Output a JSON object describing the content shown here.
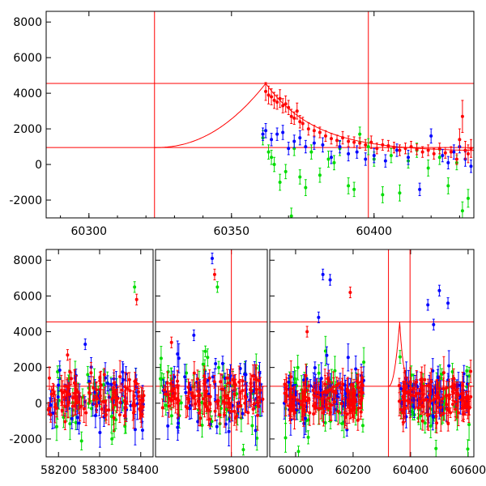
{
  "chart_data": [
    {
      "type": "scatter",
      "panel": "top",
      "title": "",
      "xlabel": "",
      "ylabel": "",
      "xlim": [
        60285,
        60435
      ],
      "ylim": [
        -3000,
        8600
      ],
      "xticks": [
        60300,
        60350,
        60400
      ],
      "yticks": [
        -2000,
        0,
        2000,
        4000,
        6000,
        8000
      ],
      "grid": false,
      "legend": "none",
      "reference_lines": {
        "vertical_x": [
          60323,
          60398
        ],
        "horizontal_y": [
          4550,
          950
        ]
      },
      "model_curve": {
        "start": [
          60323,
          950
        ],
        "peak": [
          60362,
          4550
        ],
        "end": [
          60435,
          730
        ]
      },
      "series": [
        {
          "color": "#ff0000",
          "x": [
            60362,
            60363,
            60364,
            60365,
            60366,
            60367,
            60368,
            60369,
            60370,
            60371,
            60372,
            60373,
            60374,
            60375,
            60377,
            60379,
            60381,
            60383,
            60385,
            60387,
            60389,
            60391,
            60393,
            60395,
            60397,
            60399,
            60401,
            60403,
            60405,
            60407,
            60409,
            60411,
            60413,
            60415,
            60417,
            60419,
            60421,
            60423,
            60425,
            60427,
            60429,
            60430,
            60431,
            60432,
            60433,
            60434
          ],
          "y": [
            4100,
            3900,
            3800,
            3600,
            3500,
            3700,
            3300,
            3400,
            3200,
            2700,
            2600,
            3000,
            2400,
            2300,
            2000,
            1900,
            1800,
            1600,
            1450,
            1350,
            1500,
            1300,
            1250,
            1200,
            1100,
            1250,
            900,
            1100,
            1050,
            950,
            800,
            900,
            1000,
            850,
            700,
            800,
            600,
            900,
            650,
            700,
            300,
            1400,
            2700,
            800,
            600,
            900
          ],
          "err": [
            500,
            500,
            450,
            450,
            400,
            500,
            400,
            450,
            400,
            400,
            350,
            450,
            350,
            350,
            350,
            300,
            300,
            300,
            300,
            300,
            350,
            300,
            300,
            300,
            300,
            350,
            300,
            300,
            300,
            300,
            300,
            300,
            300,
            300,
            300,
            300,
            300,
            300,
            300,
            300,
            300,
            600,
            900,
            500,
            500,
            500
          ]
        },
        {
          "color": "#0000ff",
          "x": [
            60361,
            60362,
            60364,
            60366,
            60368,
            60370,
            60372,
            60374,
            60376,
            60379,
            60382,
            60385,
            60388,
            60391,
            60394,
            60397,
            60400,
            60404,
            60408,
            60412,
            60416,
            60420,
            60424,
            60426,
            60428,
            60430,
            60432,
            60434
          ],
          "y": [
            1700,
            1900,
            1400,
            1700,
            1800,
            900,
            1300,
            1500,
            1000,
            1200,
            1100,
            400,
            1000,
            600,
            700,
            300,
            500,
            200,
            800,
            400,
            -1400,
            1600,
            500,
            100,
            700,
            1000,
            300,
            -100
          ],
          "err": [
            350,
            400,
            350,
            350,
            400,
            350,
            350,
            400,
            350,
            350,
            400,
            350,
            350,
            400,
            350,
            350,
            400,
            350,
            350,
            400,
            350,
            400,
            350,
            350,
            400,
            350,
            400,
            350
          ]
        },
        {
          "color": "#00dd00",
          "x": [
            60361,
            60363,
            60364,
            60365,
            60367,
            60369,
            60371,
            60372,
            60374,
            60376,
            60378,
            60381,
            60384,
            60386,
            60388,
            60391,
            60393,
            60395,
            60398,
            60400,
            60403,
            60406,
            60409,
            60412,
            60415,
            60419,
            60423,
            60426,
            60429,
            60431,
            60433
          ],
          "y": [
            1500,
            700,
            400,
            0,
            -1000,
            -400,
            -2900,
            900,
            -700,
            -1300,
            700,
            -600,
            300,
            100,
            900,
            -1200,
            -1400,
            1700,
            1000,
            300,
            -1700,
            500,
            -1600,
            200,
            800,
            -200,
            400,
            -1200,
            100,
            -2600,
            -1900
          ],
          "err": [
            400,
            400,
            400,
            400,
            450,
            400,
            450,
            400,
            400,
            450,
            400,
            400,
            450,
            400,
            400,
            450,
            400,
            400,
            450,
            400,
            450,
            400,
            450,
            400,
            400,
            450,
            400,
            450,
            400,
            500,
            500
          ]
        }
      ]
    },
    {
      "type": "scatter",
      "panel": "bottom",
      "title": "",
      "xlabel": "",
      "ylabel": "",
      "ylim": [
        -3000,
        8600
      ],
      "yticks": [
        -2000,
        0,
        2000,
        4000,
        6000,
        8000
      ],
      "grid": false,
      "legend": "none",
      "segments": [
        {
          "xlim": [
            58170,
            58430
          ],
          "xticks": [
            58200,
            58300,
            58400
          ],
          "vertical_x": [],
          "outliers": [
            {
              "x": 58385,
              "y": 6500,
              "color": "#00dd00"
            },
            {
              "x": 58390,
              "y": 5800,
              "color": "#ff0000"
            },
            {
              "x": 58222,
              "y": 2700,
              "color": "#ff0000"
            },
            {
              "x": 58265,
              "y": 3300,
              "color": "#0000ff"
            },
            {
              "x": 58330,
              "y": -2000,
              "color": "#00dd00"
            }
          ]
        },
        {
          "xlim": [
            59610,
            59890
          ],
          "xticks": [
            59800
          ],
          "vertical_x": [
            59800
          ],
          "outliers": [
            {
              "x": 59752,
              "y": 8100,
              "color": "#0000ff"
            },
            {
              "x": 59765,
              "y": 6500,
              "color": "#00dd00"
            },
            {
              "x": 59758,
              "y": 7200,
              "color": "#ff0000"
            },
            {
              "x": 59706,
              "y": 3800,
              "color": "#0000ff"
            },
            {
              "x": 59735,
              "y": 2900,
              "color": "#00dd00"
            },
            {
              "x": 59650,
              "y": 3400,
              "color": "#ff0000"
            },
            {
              "x": 59830,
              "y": -2600,
              "color": "#00dd00"
            }
          ]
        },
        {
          "xlim": [
            59910,
            60620
          ],
          "xticks": [
            60000,
            60200,
            60400,
            60600
          ],
          "vertical_x": [
            60323,
            60398
          ],
          "outliers": [
            {
              "x": 60095,
              "y": 7200,
              "color": "#0000ff"
            },
            {
              "x": 60120,
              "y": 6900,
              "color": "#0000ff"
            },
            {
              "x": 60190,
              "y": 6200,
              "color": "#ff0000"
            },
            {
              "x": 60080,
              "y": 4800,
              "color": "#0000ff"
            },
            {
              "x": 60460,
              "y": 5500,
              "color": "#0000ff"
            },
            {
              "x": 60500,
              "y": 6300,
              "color": "#0000ff"
            },
            {
              "x": 60530,
              "y": 5600,
              "color": "#0000ff"
            },
            {
              "x": 60480,
              "y": 4400,
              "color": "#0000ff"
            },
            {
              "x": 60010,
              "y": -2700,
              "color": "#00dd00"
            },
            {
              "x": 60040,
              "y": 4000,
              "color": "#ff0000"
            }
          ]
        }
      ],
      "reference_lines": {
        "horizontal_y": [
          4550,
          950
        ]
      },
      "clusters": [
        {
          "x_from": 58175,
          "x_to": 58410,
          "center_y": 300,
          "spread_red": 550,
          "spread_blue": 800,
          "spread_green": 1000
        },
        {
          "x_from": 59620,
          "x_to": 59880,
          "center_y": 350,
          "spread_red": 650,
          "spread_blue": 900,
          "spread_green": 1100
        },
        {
          "x_from": 59960,
          "x_to": 60240,
          "center_y": 300,
          "spread_red": 600,
          "spread_blue": 850,
          "spread_green": 1050
        },
        {
          "x_from": 60360,
          "x_to": 60610,
          "center_y": 350,
          "spread_red": 600,
          "spread_blue": 850,
          "spread_green": 1050
        }
      ],
      "model_curve": {
        "start": [
          60323,
          950
        ],
        "peak": [
          60362,
          4550
        ],
        "end": [
          60420,
          700
        ]
      }
    }
  ]
}
